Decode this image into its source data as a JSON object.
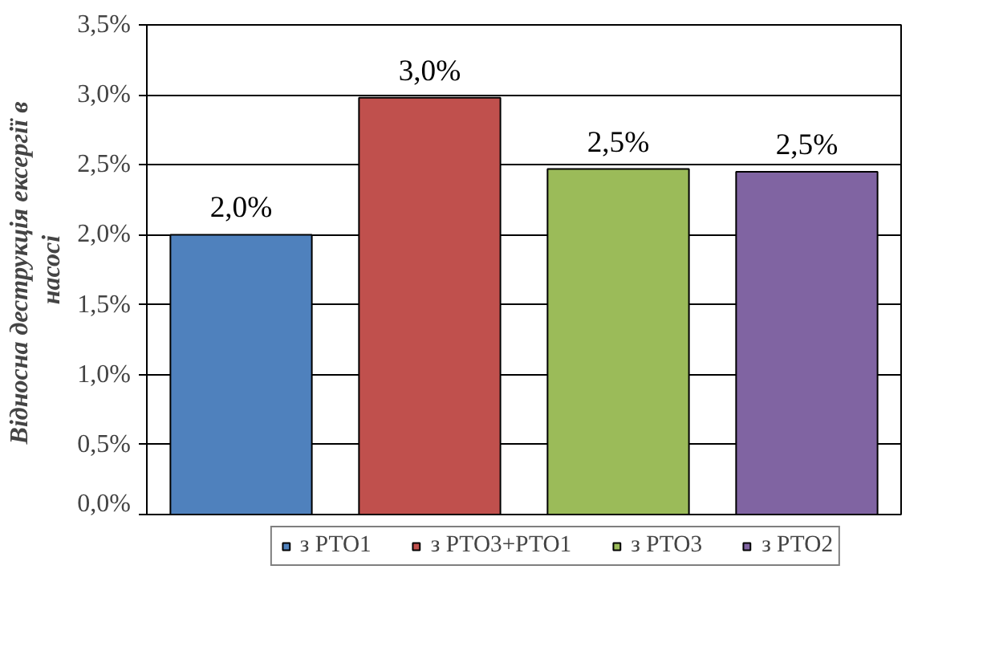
{
  "chart_data": {
    "type": "bar",
    "ylabel": "Відносна деструкція ексергії  в насосі",
    "categories": [
      null,
      null,
      null,
      null
    ],
    "series": [
      {
        "name": "з РТО1",
        "color": "#4f81bd",
        "values": [
          2.0,
          null,
          null,
          null
        ],
        "value_labels": [
          "2,0%",
          null,
          null,
          null
        ]
      },
      {
        "name": "з РТО3+РТО1",
        "color": "#c0504d",
        "values": [
          null,
          2.98,
          null,
          null
        ],
        "value_labels": [
          null,
          "3,0%",
          null,
          null
        ]
      },
      {
        "name": "з РТО3",
        "color": "#9bbb59",
        "values": [
          null,
          null,
          2.47,
          null
        ],
        "value_labels": [
          null,
          null,
          "2,5%",
          null
        ]
      },
      {
        "name": "з РТО2",
        "color": "#8064a2",
        "values": [
          null,
          null,
          null,
          2.45
        ],
        "value_labels": [
          null,
          null,
          null,
          "2,5%"
        ]
      }
    ],
    "ylim": [
      0,
      3.5
    ],
    "yticks": [
      {
        "value": 0,
        "label": "0,0%"
      },
      {
        "value": 0.5,
        "label": "0,5%"
      },
      {
        "value": 1,
        "label": "1,0%"
      },
      {
        "value": 1.5,
        "label": "1,5%"
      },
      {
        "value": 2,
        "label": "2,0%"
      },
      {
        "value": 2.5,
        "label": "2,5%"
      },
      {
        "value": 3,
        "label": "3,0%"
      },
      {
        "value": 3.5,
        "label": "3,5%"
      }
    ],
    "grid": "y",
    "legend": "bottom"
  }
}
